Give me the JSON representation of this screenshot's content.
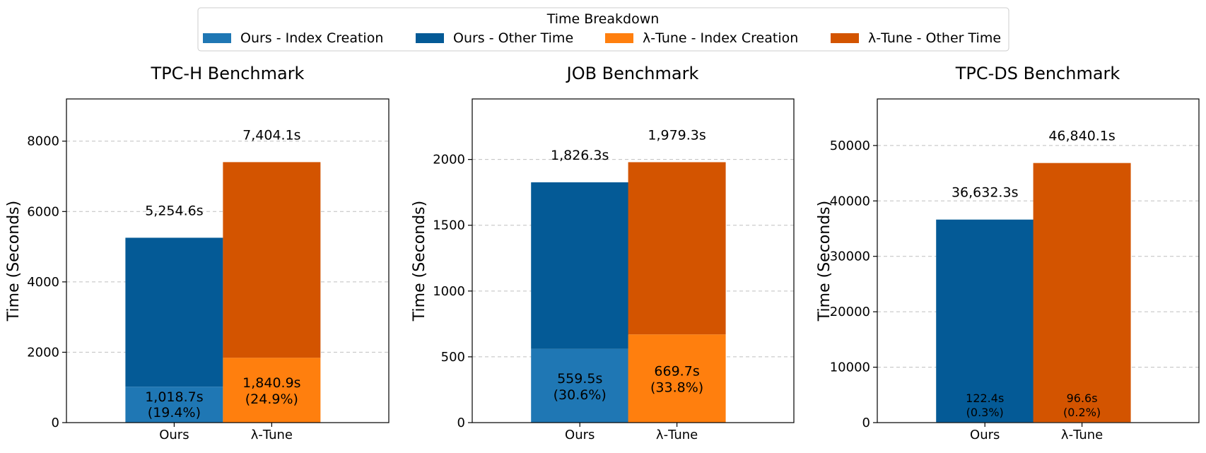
{
  "chart_data": {
    "type": "bar",
    "legend": {
      "title": "Time Breakdown",
      "placement": "top-center",
      "entries": [
        {
          "label": "Ours - Index Creation",
          "color": "#1f77b4"
        },
        {
          "label": "Ours - Other Time",
          "color": "#045a96"
        },
        {
          "label": "λ-Tune - Index Creation",
          "color": "#ff7f0e"
        },
        {
          "label": "λ-Tune - Other Time",
          "color": "#d35400"
        }
      ]
    },
    "panels": [
      {
        "title": "TPC-H Benchmark",
        "ylabel": "Time (Seconds)",
        "ylim": [
          0,
          9200
        ],
        "yticks": [
          0,
          2000,
          4000,
          6000,
          8000
        ],
        "ytick_labels": [
          "0",
          "2000",
          "4000",
          "6000",
          "8000"
        ],
        "grid": true,
        "categories": [
          "Ours",
          "λ-Tune"
        ],
        "bars": [
          {
            "category": "Ours",
            "index_creation": 1018.7,
            "total": 5254.6,
            "total_label": "5,254.6s",
            "index_label": "1,018.7s",
            "pct_label": "(19.4%)",
            "index_color": "#1f77b4",
            "other_color": "#045a96"
          },
          {
            "category": "λ-Tune",
            "index_creation": 1840.9,
            "total": 7404.1,
            "total_label": "7,404.1s",
            "index_label": "1,840.9s",
            "pct_label": "(24.9%)",
            "index_color": "#ff7f0e",
            "other_color": "#d35400"
          }
        ]
      },
      {
        "title": "JOB Benchmark",
        "ylabel": "Time (Seconds)",
        "ylim": [
          0,
          2460
        ],
        "yticks": [
          0,
          500,
          1000,
          1500,
          2000
        ],
        "ytick_labels": [
          "0",
          "500",
          "1000",
          "1500",
          "2000"
        ],
        "grid": true,
        "categories": [
          "Ours",
          "λ-Tune"
        ],
        "bars": [
          {
            "category": "Ours",
            "index_creation": 559.5,
            "total": 1826.3,
            "total_label": "1,826.3s",
            "index_label": "559.5s",
            "pct_label": "(30.6%)",
            "index_color": "#1f77b4",
            "other_color": "#045a96"
          },
          {
            "category": "λ-Tune",
            "index_creation": 669.7,
            "total": 1979.3,
            "total_label": "1,979.3s",
            "index_label": "669.7s",
            "pct_label": "(33.8%)",
            "index_color": "#ff7f0e",
            "other_color": "#d35400"
          }
        ]
      },
      {
        "title": "TPC-DS Benchmark",
        "ylabel": "Time (Seconds)",
        "ylim": [
          0,
          58400
        ],
        "yticks": [
          0,
          10000,
          20000,
          30000,
          40000,
          50000
        ],
        "ytick_labels": [
          "0",
          "10000",
          "20000",
          "30000",
          "40000",
          "50000"
        ],
        "grid": true,
        "categories": [
          "Ours",
          "λ-Tune"
        ],
        "bars": [
          {
            "category": "Ours",
            "index_creation": 122.4,
            "total": 36632.3,
            "total_label": "36,632.3s",
            "index_label": "122.4s",
            "pct_label": "(0.3%)",
            "index_color": "#1f77b4",
            "other_color": "#045a96"
          },
          {
            "category": "λ-Tune",
            "index_creation": 96.6,
            "total": 46840.1,
            "total_label": "46,840.1s",
            "index_label": "96.6s",
            "pct_label": "(0.2%)",
            "index_color": "#ff7f0e",
            "other_color": "#d35400"
          }
        ]
      }
    ]
  }
}
